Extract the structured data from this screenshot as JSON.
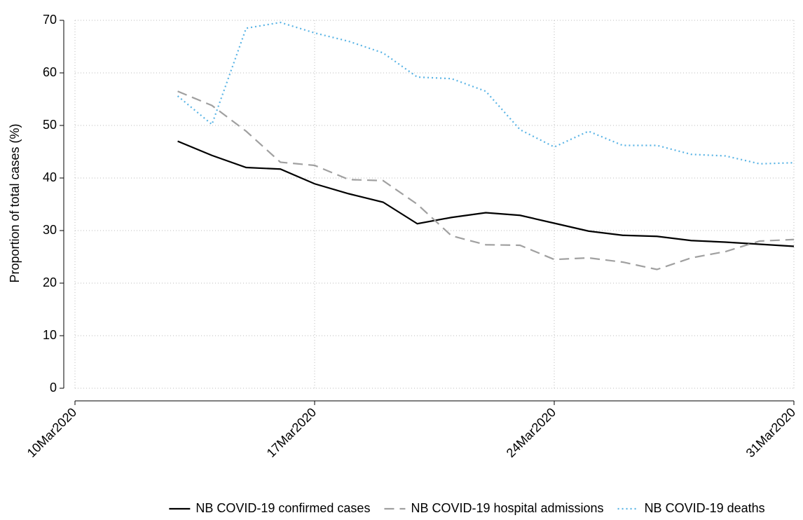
{
  "chart_data": {
    "type": "line",
    "y_label": "Proportion of total cases (%)",
    "x": [
      "2020-03-13",
      "2020-03-14",
      "2020-03-15",
      "2020-03-16",
      "2020-03-17",
      "2020-03-18",
      "2020-03-19",
      "2020-03-20",
      "2020-03-21",
      "2020-03-22",
      "2020-03-23",
      "2020-03-24",
      "2020-03-25",
      "2020-03-26",
      "2020-03-27",
      "2020-03-28",
      "2020-03-29",
      "2020-03-30",
      "2020-03-31"
    ],
    "series": [
      {
        "name": "NB COVID-19 confirmed cases",
        "color": "#000000",
        "dash": "solid",
        "values": [
          47,
          44.3,
          42,
          41.7,
          38.9,
          37,
          35.4,
          31.3,
          32.5,
          33.4,
          32.9,
          31.4,
          29.9,
          29.1,
          28.9,
          28.1,
          27.8,
          27.4,
          27
        ]
      },
      {
        "name": "NB COVID-19 hospital admissions",
        "color": "#a0a0a0",
        "dash": "dashed",
        "values": [
          56.5,
          53.8,
          48.9,
          43,
          42.4,
          39.7,
          39.5,
          35,
          29,
          27.3,
          27.2,
          24.5,
          24.8,
          24,
          22.6,
          24.8,
          26,
          28,
          28.3
        ]
      },
      {
        "name": "NB COVID-19 deaths",
        "color": "#5ab4e5",
        "dash": "dotted",
        "values": [
          55.6,
          50.2,
          68.5,
          69.6,
          67.6,
          66,
          63.8,
          59.2,
          58.9,
          56.5,
          49.2,
          45.9,
          48.9,
          46.2,
          46.2,
          44.5,
          44.2,
          42.7,
          42.9
        ]
      }
    ],
    "xlim": [
      "2020-03-10",
      "2020-03-31"
    ],
    "xticks": [
      {
        "value": "2020-03-10",
        "label": "10Mar2020"
      },
      {
        "value": "2020-03-17",
        "label": "17Mar2020"
      },
      {
        "value": "2020-03-24",
        "label": "24Mar2020"
      },
      {
        "value": "2020-03-31",
        "label": "31Mar2020"
      }
    ],
    "ylim": [
      0,
      70
    ],
    "yticks": [
      0,
      10,
      20,
      30,
      40,
      50,
      60,
      70
    ],
    "grid": true,
    "legend": "bottom"
  }
}
